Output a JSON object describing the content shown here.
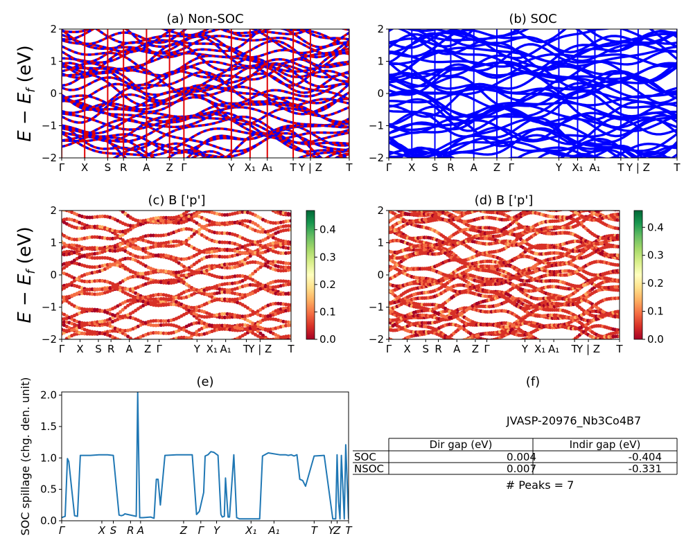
{
  "chart_data": [
    {
      "panel": "a",
      "type": "line",
      "title": "(a) Non-SOC",
      "ylabel": "E − E_f (eV)",
      "ylim": [
        -2,
        2
      ],
      "yticks": [
        "−2",
        "−1",
        "0",
        "1",
        "2"
      ],
      "xtick_labels": [
        "Γ",
        "X",
        "S",
        "R",
        "A",
        "Z",
        "Γ",
        "Y",
        "X₁",
        "A₁",
        "T",
        "Y | Z",
        "T"
      ],
      "series_colors": [
        "#e00000",
        "#0000ff"
      ],
      "note": "dense band structure, spin-up red and spin-down blue dashed overlay"
    },
    {
      "panel": "b",
      "type": "line",
      "title": "(b) SOC",
      "ylim": [
        -2,
        2
      ],
      "yticks": [
        "−2",
        "−1",
        "0",
        "1",
        "2"
      ],
      "xtick_labels": [
        "Γ",
        "X",
        "S",
        "R",
        "A",
        "Z",
        "Γ",
        "Y",
        "X₁",
        "A₁",
        "T",
        "Y | Z",
        "T"
      ],
      "series_colors": [
        "#0000ff"
      ]
    },
    {
      "panel": "c",
      "type": "scatter",
      "title": "(c)  B ['p']",
      "ylabel": "E − E_f (eV)",
      "ylim": [
        -2,
        2
      ],
      "yticks": [
        "−2",
        "−1",
        "0",
        "1",
        "2"
      ],
      "xtick_labels": [
        "Γ",
        "X",
        "S",
        "R",
        "A",
        "Z",
        "Γ",
        "Y",
        "X₁",
        "A₁",
        "T",
        "Y | Z",
        "T"
      ],
      "colorbar": {
        "min": 0.0,
        "max": 0.47,
        "ticks": [
          "0.0",
          "0.1",
          "0.2",
          "0.3",
          "0.4"
        ],
        "colormap": "RdYlGn"
      }
    },
    {
      "panel": "d",
      "type": "scatter",
      "title": "(d) B ['p']",
      "ylim": [
        -2,
        2
      ],
      "yticks": [
        "−2",
        "−1",
        "0",
        "1",
        "2"
      ],
      "xtick_labels": [
        "Γ",
        "X",
        "S",
        "R",
        "A",
        "Z",
        "Γ",
        "Y",
        "X₁",
        "A₁",
        "T",
        "Y | Z",
        "T"
      ],
      "colorbar": {
        "min": 0.0,
        "max": 0.46,
        "ticks": [
          "0.0",
          "0.1",
          "0.2",
          "0.3",
          "0.4"
        ],
        "colormap": "RdYlGn"
      }
    },
    {
      "panel": "e",
      "type": "line",
      "title": "(e)",
      "ylabel": "SOC spillage (chg. den. unit)",
      "ylim": [
        0,
        2.05
      ],
      "yticks": [
        "0.0",
        "0.5",
        "1.0",
        "1.5",
        "2.0"
      ],
      "xtick_labels": [
        "Γ",
        "X",
        "S",
        "R",
        "A",
        "Z",
        "Γ",
        "Y",
        "X₁",
        "A₁",
        "T",
        "Y",
        "Z",
        "T"
      ],
      "series_color": "#1f77b4",
      "x": [
        0,
        0.012,
        0.02,
        0.025,
        0.035,
        0.045,
        0.055,
        0.065,
        0.1,
        0.13,
        0.16,
        0.18,
        0.2,
        0.208,
        0.215,
        0.22,
        0.26,
        0.265,
        0.272,
        0.276,
        0.28,
        0.283,
        0.31,
        0.322,
        0.33,
        0.336,
        0.344,
        0.36,
        0.4,
        0.42,
        0.455,
        0.47,
        0.48,
        0.495,
        0.5,
        0.51,
        0.52,
        0.53,
        0.545,
        0.555,
        0.56,
        0.567,
        0.571,
        0.58,
        0.585,
        0.6,
        0.61,
        0.62,
        0.66,
        0.69,
        0.7,
        0.72,
        0.76,
        0.77,
        0.78,
        0.79,
        0.8,
        0.81,
        0.82,
        0.83,
        0.84,
        0.85,
        0.88,
        0.915,
        0.97,
        0.945,
        0.955,
        0.96,
        0.965,
        0.975,
        0.985,
        0.99,
        1.0
      ],
      "values": [
        0.05,
        0.07,
        0.99,
        0.94,
        0.5,
        0.08,
        0.07,
        1.04,
        1.04,
        1.05,
        1.05,
        1.04,
        0.09,
        0.08,
        0.09,
        0.11,
        0.07,
        2.05,
        0.05,
        0.05,
        0.05,
        0.05,
        0.06,
        0.04,
        0.66,
        0.66,
        0.25,
        1.04,
        1.05,
        1.05,
        1.05,
        0.1,
        0.15,
        0.45,
        1.03,
        1.05,
        1.1,
        1.09,
        1.04,
        0.1,
        0.06,
        0.07,
        0.68,
        0.06,
        0.06,
        1.05,
        0.05,
        0.03,
        0.03,
        0.03,
        1.03,
        1.08,
        1.05,
        1.05,
        1.05,
        1.04,
        1.05,
        1.03,
        1.05,
        0.66,
        0.64,
        0.55,
        1.03,
        1.04,
        0.03,
        0.03,
        0.03,
        1.05,
        0.3,
        1.04,
        0.03,
        1.21,
        0.03
      ]
    }
  ],
  "panel_f": {
    "title": "(f)",
    "material": "JVASP-20976_Nb3Co4B7",
    "table": {
      "headers": [
        "",
        "Dir gap (eV)",
        "Indir gap (eV)"
      ],
      "rows": [
        [
          "SOC",
          "0.004",
          "-0.404"
        ],
        [
          "NSOC",
          "0.007",
          "-0.331"
        ]
      ]
    },
    "peaks": "# Peaks = 7"
  }
}
